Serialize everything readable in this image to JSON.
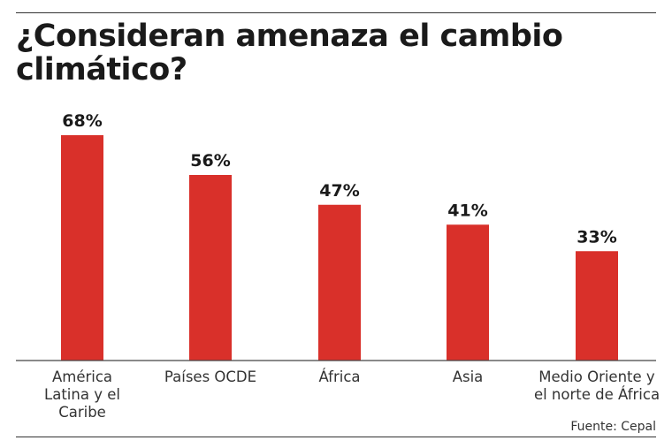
{
  "chart_data": {
    "type": "bar",
    "title": "¿Consideran amenaza el cambio climático?",
    "categories": [
      [
        "América",
        "Latina y el",
        "Caribe"
      ],
      [
        "Países OCDE"
      ],
      [
        "África"
      ],
      [
        "Asia"
      ],
      [
        "Medio Oriente y",
        "el norte de África"
      ]
    ],
    "values": [
      68,
      56,
      47,
      41,
      33
    ],
    "value_labels": [
      "68%",
      "56%",
      "47%",
      "41%",
      "33%"
    ],
    "bar_color": "#d9302a",
    "axis_color": "#444444",
    "ylim": [
      0,
      100
    ],
    "grid": false,
    "legend": "none"
  },
  "source": "Fuente: Cepal"
}
